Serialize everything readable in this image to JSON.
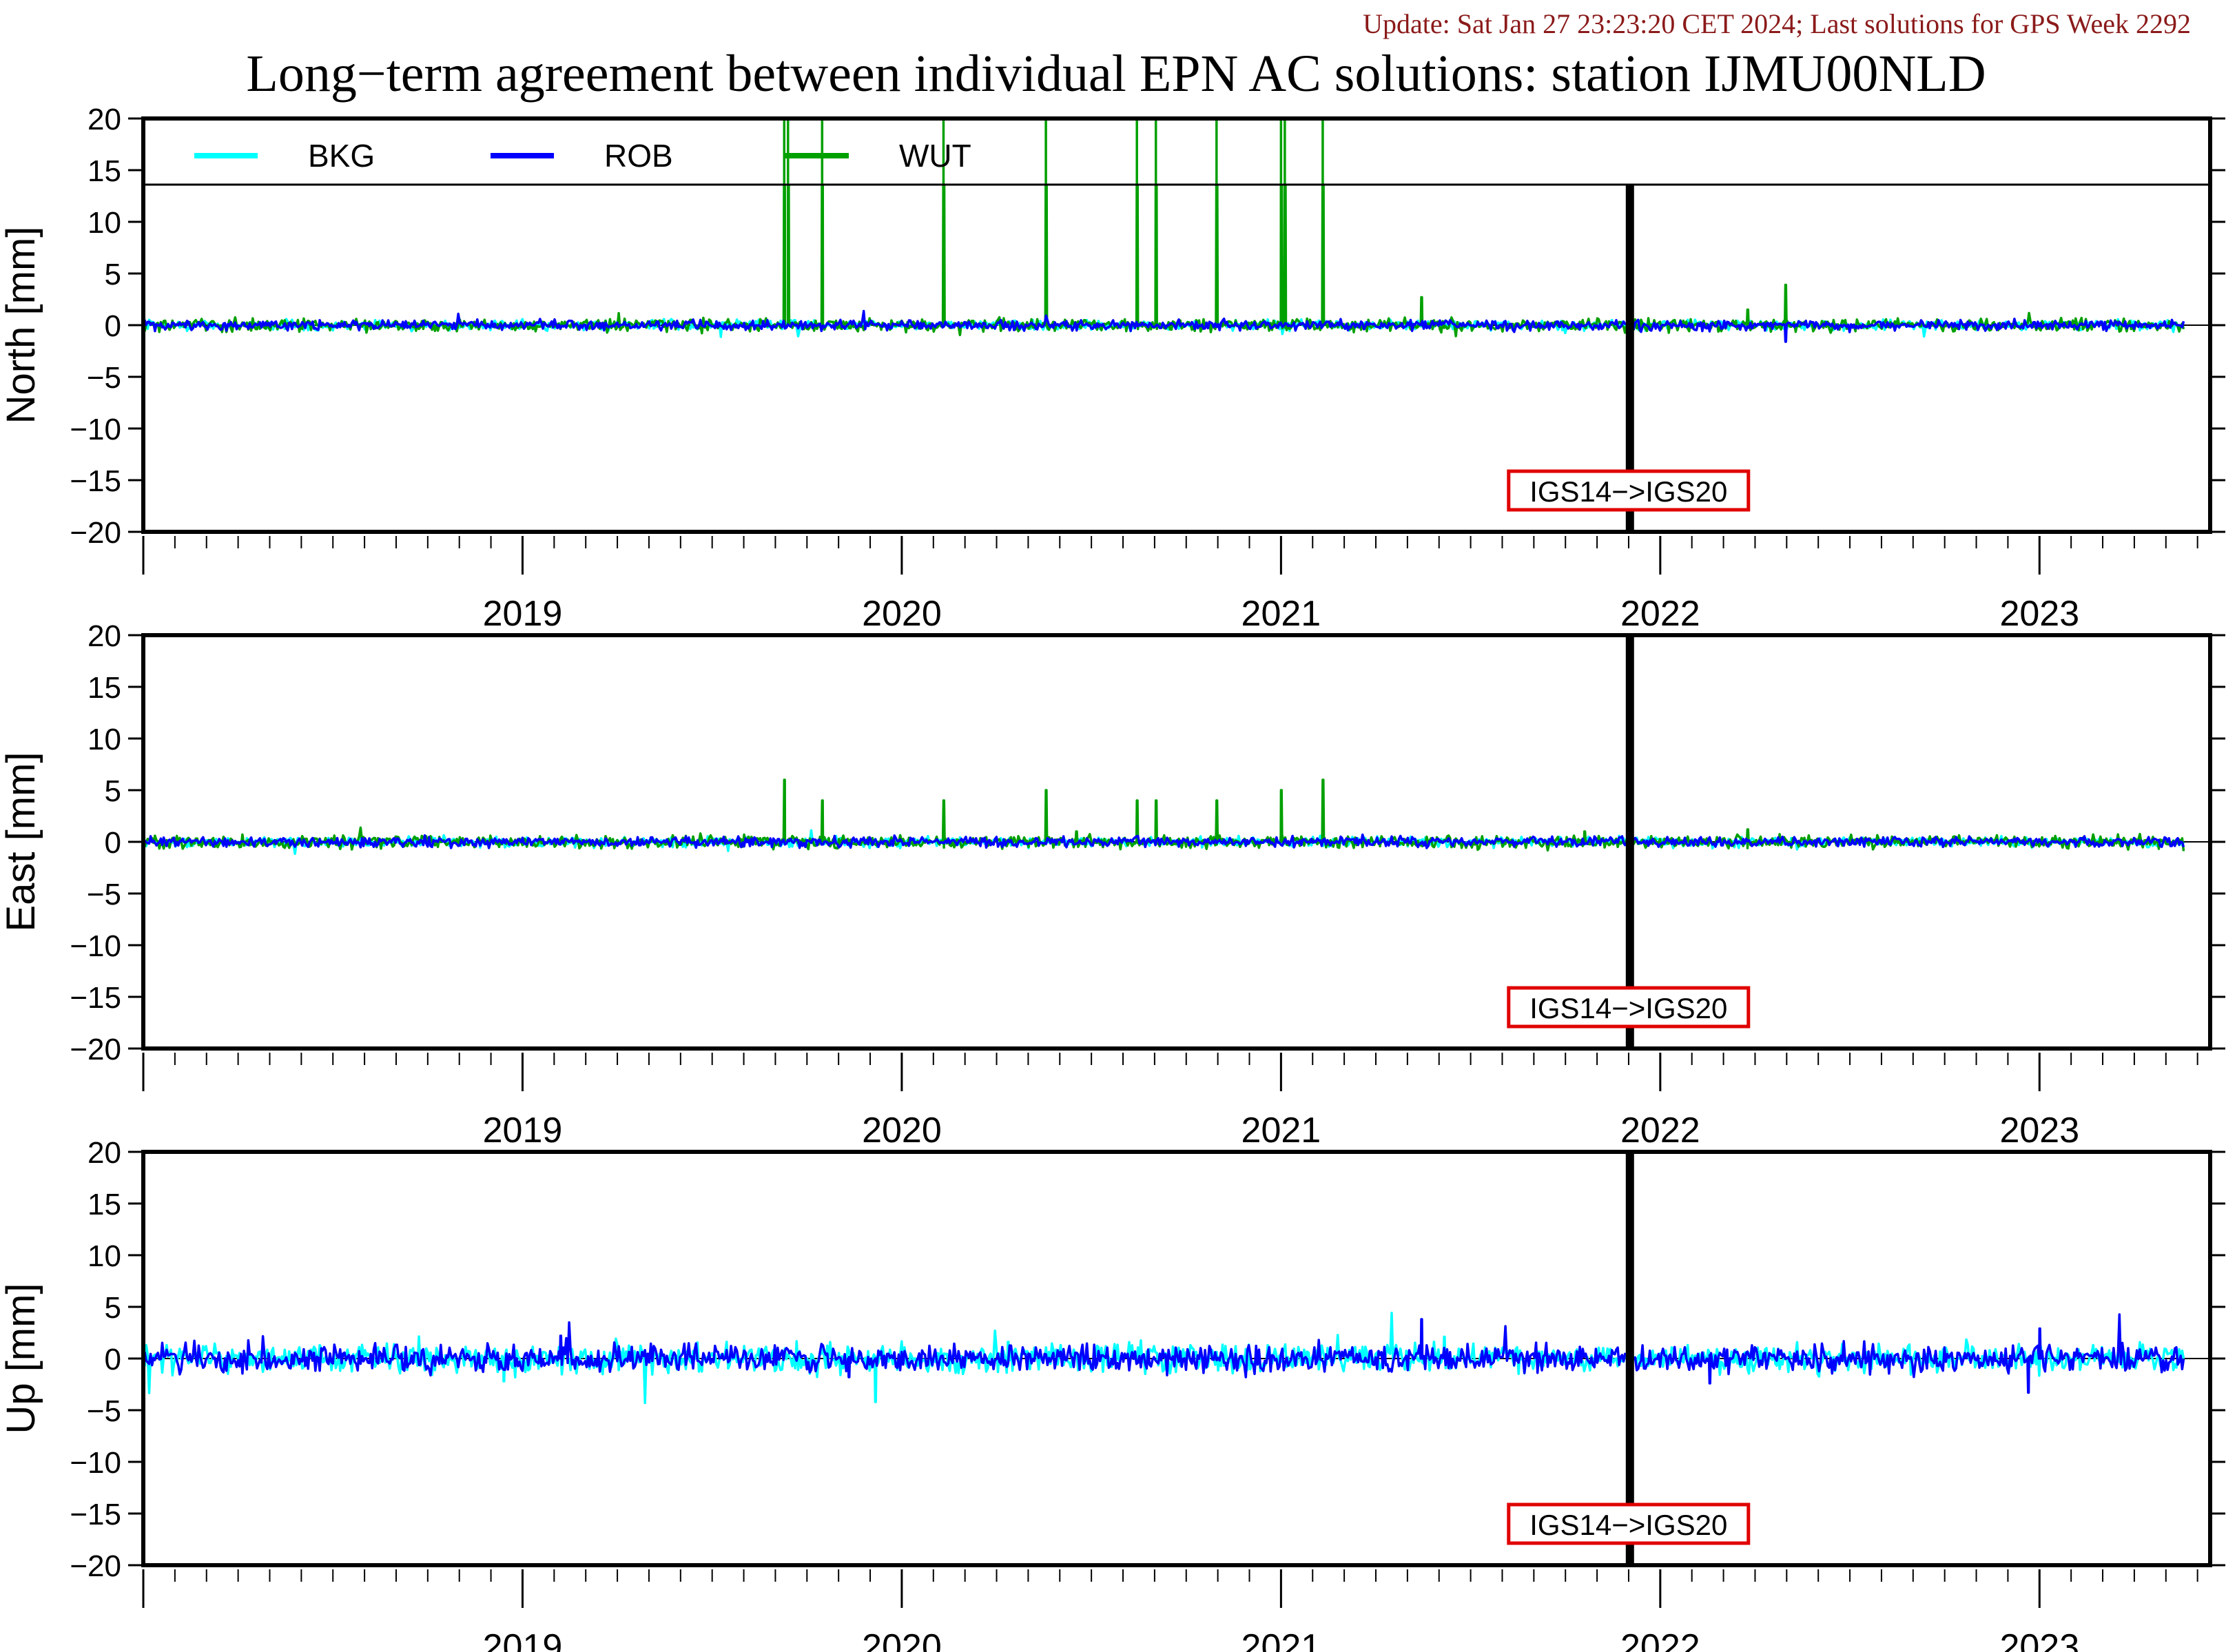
{
  "update_text": "Update: Sat Jan 27 23:23:20 CET 2024; Last solutions for GPS Week 2292",
  "title": "Long−term agreement between individual EPN AC solutions: station IJMU00NLD",
  "colors": {
    "update_text": "#8b1a1a",
    "BKG": "#00ffff",
    "ROB": "#0000ff",
    "WUT": "#00a000",
    "marker_box": "#e00000",
    "axis": "#000000"
  },
  "chart_data": [
    {
      "type": "line",
      "panel": "north",
      "ylabel": "North [mm]",
      "ylim": [
        -20,
        20
      ],
      "yticks": [
        "20",
        "15",
        "10",
        "5",
        "0",
        "−5",
        "−10",
        "−15",
        "−20"
      ],
      "xlim": [
        2018.5,
        2023.95
      ],
      "xticklabels": [
        "2019",
        "2020",
        "2021",
        "2022",
        "2023"
      ],
      "legend": {
        "placement": "top-left",
        "entries": [
          "BKG",
          "ROB",
          "WUT"
        ]
      },
      "noise_amplitude": {
        "BKG": 0.35,
        "ROB": 0.35,
        "WUT": 0.45
      },
      "spikes": {
        "WUT": [
          [
            2020.19,
            20
          ],
          [
            2020.2,
            20
          ],
          [
            2020.29,
            20
          ],
          [
            2020.61,
            20
          ],
          [
            2020.88,
            20
          ],
          [
            2021.12,
            20
          ],
          [
            2021.17,
            20
          ],
          [
            2021.33,
            20
          ],
          [
            2021.5,
            20
          ],
          [
            2021.51,
            20
          ],
          [
            2021.61,
            20
          ],
          [
            2021.87,
            2.7
          ],
          [
            2022.73,
            1.5
          ],
          [
            2022.83,
            3.9
          ]
        ],
        "ROB": [
          [
            2022.83,
            -1.6
          ]
        ],
        "BKG": []
      },
      "vertical_marker": {
        "x": 2022.42,
        "label": "IGS14−>IGS20"
      }
    },
    {
      "type": "line",
      "panel": "east",
      "ylabel": "East [mm]",
      "ylim": [
        -20,
        20
      ],
      "yticks": [
        "20",
        "15",
        "10",
        "5",
        "0",
        "−5",
        "−10",
        "−15",
        "−20"
      ],
      "xlim": [
        2018.5,
        2023.95
      ],
      "xticklabels": [
        "2019",
        "2020",
        "2021",
        "2022",
        "2023"
      ],
      "noise_amplitude": {
        "BKG": 0.35,
        "ROB": 0.35,
        "WUT": 0.45
      },
      "spikes": {
        "WUT": [
          [
            2020.19,
            6
          ],
          [
            2020.29,
            4
          ],
          [
            2020.61,
            4
          ],
          [
            2020.88,
            5
          ],
          [
            2020.96,
            1
          ],
          [
            2021.12,
            4
          ],
          [
            2021.17,
            4
          ],
          [
            2021.33,
            4
          ],
          [
            2021.5,
            5
          ],
          [
            2021.61,
            6
          ],
          [
            2022.3,
            1
          ],
          [
            2022.73,
            1.2
          ]
        ],
        "ROB": [],
        "BKG": []
      },
      "vertical_marker": {
        "x": 2022.42,
        "label": "IGS14−>IGS20"
      }
    },
    {
      "type": "line",
      "panel": "up",
      "ylabel": "Up [mm]",
      "ylim": [
        -20,
        20
      ],
      "yticks": [
        "20",
        "15",
        "10",
        "5",
        "0",
        "−5",
        "−10",
        "−15",
        "−20"
      ],
      "xlim": [
        2018.5,
        2023.95
      ],
      "xticklabels": [
        "2019",
        "2020",
        "2021",
        "2022",
        "2023"
      ],
      "noise_amplitude": {
        "BKG": 1.0,
        "ROB": 1.0,
        "WUT": 0
      },
      "spikes": {
        "ROB": [
          [
            2021.87,
            3.8
          ],
          [
            2019.6,
            2.2
          ],
          [
            2020.36,
            -1.8
          ],
          [
            2023.5,
            2.9
          ],
          [
            2023.47,
            -3.3
          ],
          [
            2022.63,
            -2.4
          ]
        ],
        "BKG": [
          [
            2020.43,
            -4.2
          ],
          [
            2021.93,
            2.1
          ],
          [
            2020.78,
            1.6
          ],
          [
            2019.45,
            -2.2
          ]
        ],
        "WUT": []
      },
      "vertical_marker": {
        "x": 2022.42,
        "label": "IGS14−>IGS20"
      }
    }
  ]
}
